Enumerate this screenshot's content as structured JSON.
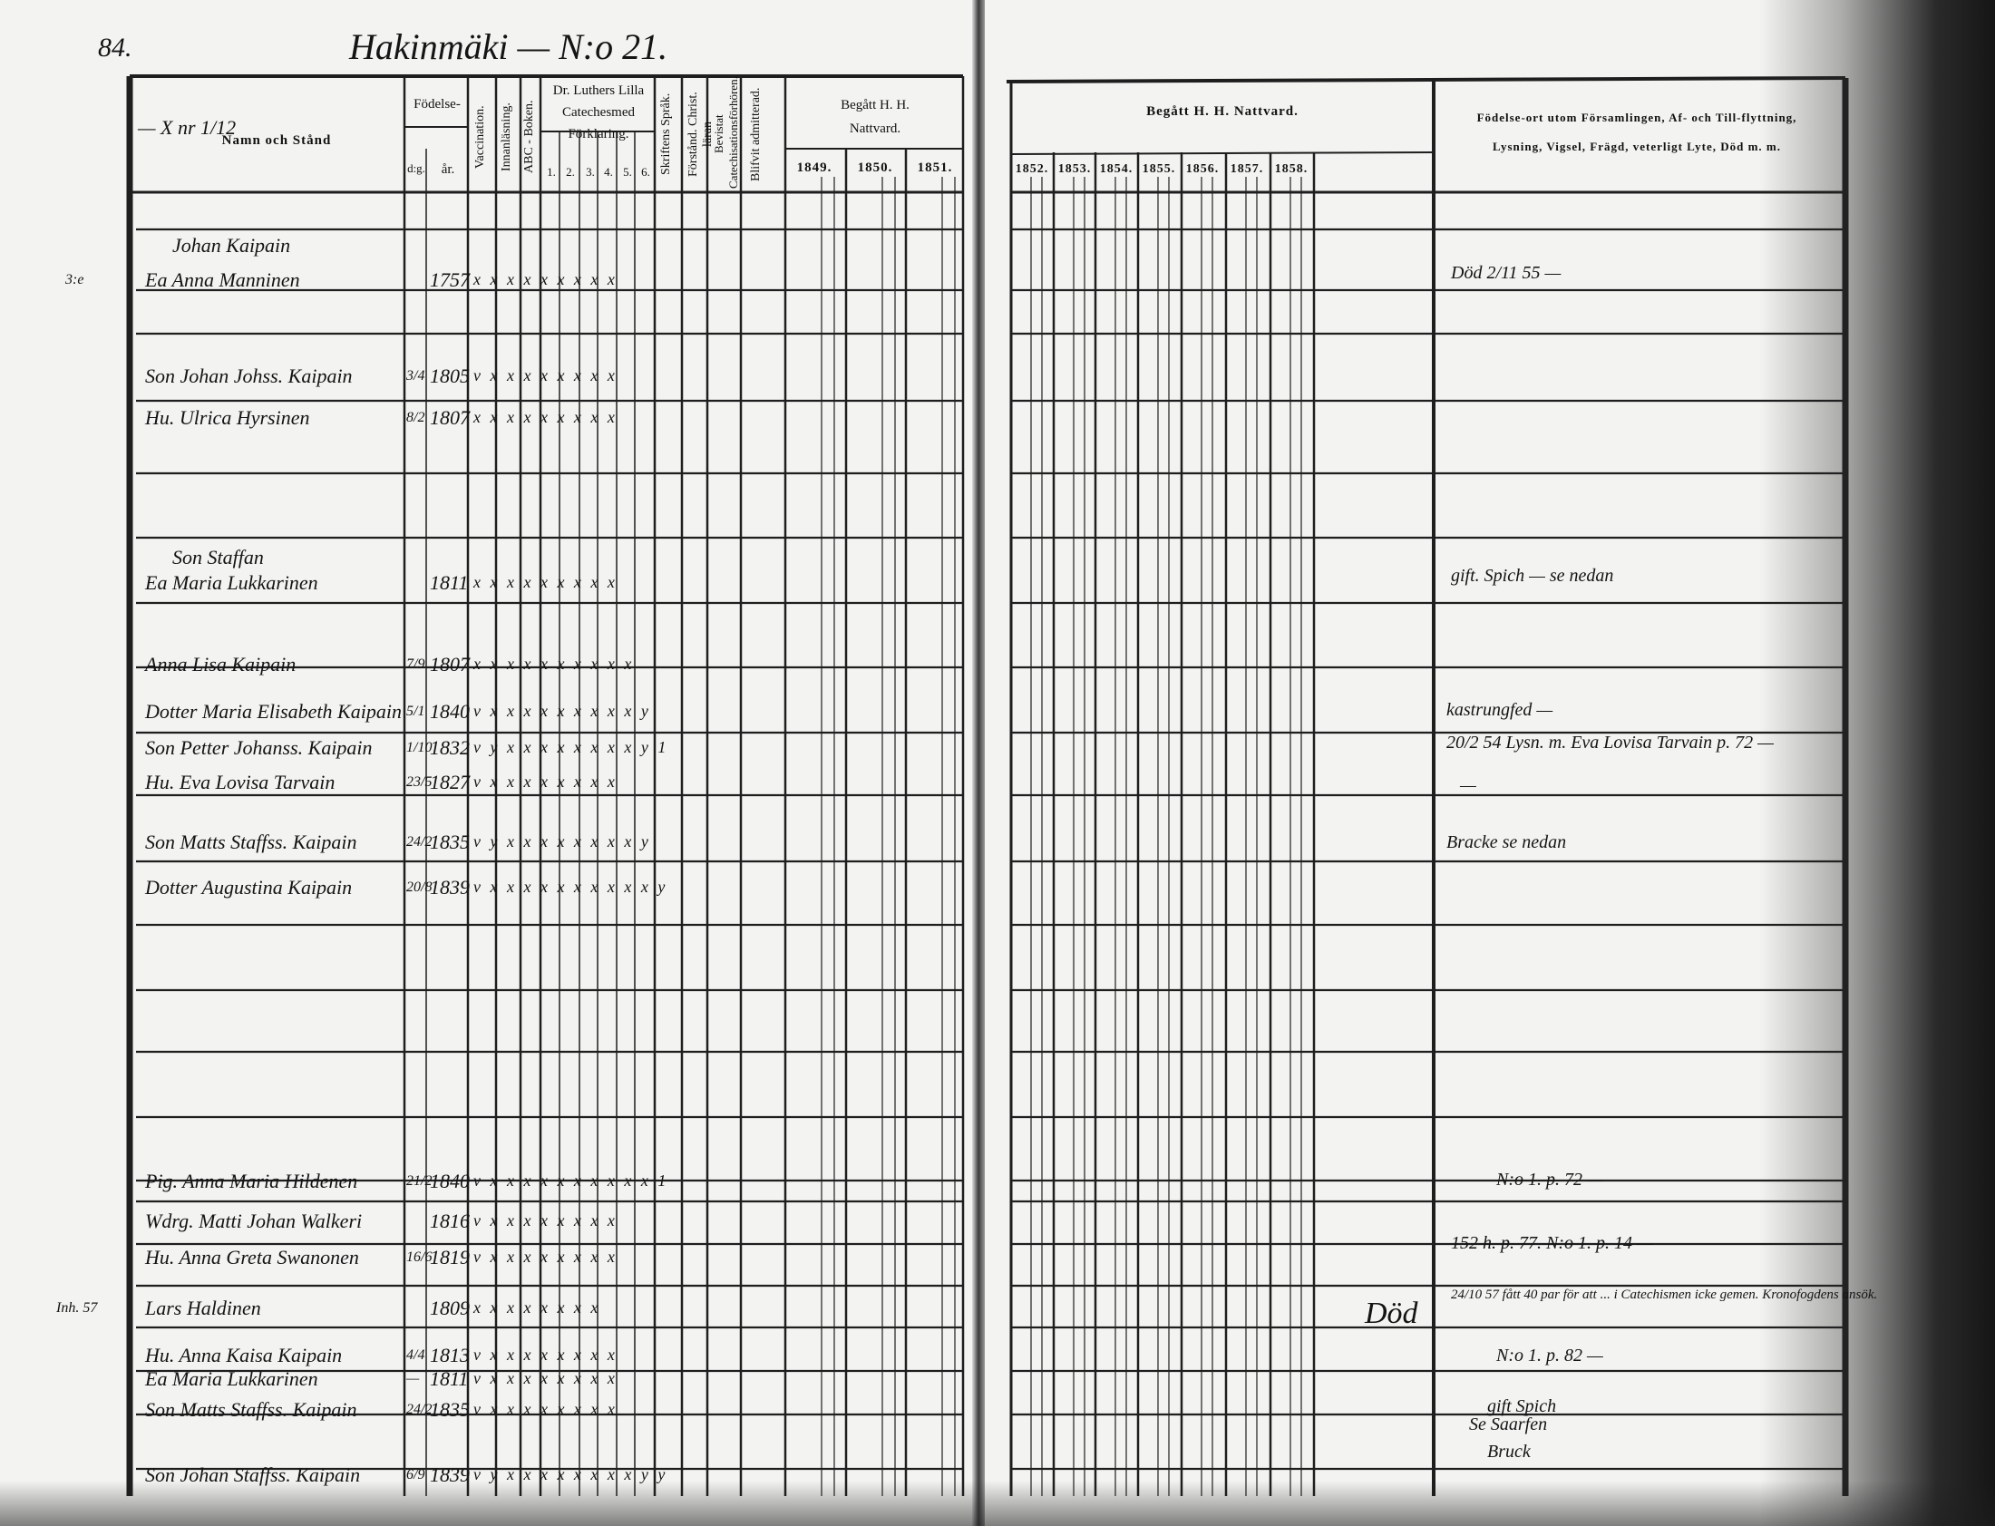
{
  "page_number": "84.",
  "title": "Hakinmäki — N:o 21.",
  "margin_mark": "— X nr 1/12",
  "headers": {
    "name": "Namn och Stånd",
    "birth": "Födelse-",
    "birth_day": "d:g.",
    "birth_year": "år.",
    "vaccination": "Vaccination.",
    "innanlasning": "Innanläsning.",
    "abc": "ABC - Boken.",
    "luther": "Dr. Luthers Lilla Catechesmed Förklaring.",
    "luther_parts": [
      "1.",
      "2.",
      "3.",
      "4.",
      "5.",
      "6."
    ],
    "skriftens": "Skriftens Språk.",
    "forst": "Förstånd. Christ. läran",
    "bevistat": "Bevistat Catechisationsförhören.",
    "blifvit": "Blifvit admitterad.",
    "begatt_left": "Begått H. H. Nattvard.",
    "years_left": [
      "1849.",
      "1850.",
      "1851."
    ],
    "begatt_right": "Begått H. H. Nattvard.",
    "years_right": [
      "1852.",
      "1853.",
      "1854.",
      "1855.",
      "1856.",
      "1857.",
      "1858."
    ],
    "notes_line1": "Födelse-ort utom Församlingen, Af- och Till-flyttning,",
    "notes_line2": "Lysning, Vigsel, Frägd, veterligt Lyte, Död m. m."
  },
  "entries": [
    {
      "prefix": "",
      "name": "Johan Kaipain",
      "day": "",
      "year": "",
      "marks": ""
    },
    {
      "prefix": "3:e",
      "name": "Ea Anna Manninen",
      "day": "",
      "year": "1757",
      "marks": "x x x x x x x x   x"
    },
    {
      "prefix": "",
      "name": "Son Johan Johss. Kaipain",
      "day": "3/4",
      "year": "1805",
      "marks": "v x x x x x x x   x"
    },
    {
      "prefix": "",
      "name": "Hu. Ulrica Hyrsinen",
      "day": "8/2",
      "year": "1807",
      "marks": "x x x x x x x x   x"
    },
    {
      "prefix": "",
      "name": "Son Staffan",
      "day": "",
      "year": "",
      "marks": ""
    },
    {
      "prefix": "",
      "name": "Ea Maria Lukkarinen",
      "day": "",
      "year": "1811",
      "marks": "x x x x x x x x   x"
    },
    {
      "prefix": "",
      "name": "Anna Lisa Kaipain",
      "day": "7/9",
      "year": "1807",
      "marks": "x x x x x x x x x  x"
    },
    {
      "prefix": "",
      "name": "Dotter Maria Elisabeth Kaipain",
      "day": "5/1",
      "year": "1840",
      "marks": "v x x x x x x x x x y"
    },
    {
      "prefix": "",
      "name": "Son Petter Johanss. Kaipain",
      "day": "1/10",
      "year": "1832",
      "marks": "v y x x x x x x x x y 1"
    },
    {
      "prefix": "",
      "name": "Hu. Eva Lovisa Tarvain",
      "day": "23/5",
      "year": "1827",
      "marks": "v x x x x x x x x"
    },
    {
      "prefix": "",
      "name": "Son Matts Staffss. Kaipain",
      "day": "24/2",
      "year": "1835",
      "marks": "v y x x x x x x x x  y"
    },
    {
      "prefix": "",
      "name": "Dotter Augustina Kaipain",
      "day": "20/8",
      "year": "1839",
      "marks": "v x x x x x x x x x x y"
    },
    {
      "prefix": "",
      "name": "Pig. Anna Maria Hildenen",
      "day": "21/2",
      "year": "1840",
      "marks": "v x x x x x x x x x x 1"
    },
    {
      "prefix": "",
      "name": "Wdrg. Matti Johan Walkeri",
      "day": "",
      "year": "1816",
      "marks": "v x x x x x x x x"
    },
    {
      "prefix": "",
      "name": "Hu. Anna Greta Swanonen",
      "day": "16/6",
      "year": "1819",
      "marks": "v x x x x x x x x"
    },
    {
      "prefix": "Inh. 57",
      "name": "Lars Haldinen",
      "day": "",
      "year": "1809",
      "marks": "x x x x x x x x"
    },
    {
      "prefix": "",
      "name": "Hu. Anna Kaisa Kaipain",
      "day": "4/4",
      "year": "1813",
      "marks": "v x x x x x x x x"
    },
    {
      "prefix": "",
      "name": "Ea Maria Lukkarinen",
      "day": "—",
      "year": "1811",
      "marks": "v x x x x x x x x"
    },
    {
      "prefix": "",
      "name": "Son Matts Staffss. Kaipain",
      "day": "24/2",
      "year": "1835",
      "marks": "v x x x x x x x x"
    },
    {
      "prefix": "",
      "name": "Son Johan Staffss. Kaipain",
      "day": "6/9",
      "year": "1839",
      "marks": "v y x x x x x x x x y y"
    }
  ],
  "notes": [
    "Död 2/11 55 —",
    "gift. Spich — se nedan",
    "kastrungfed —",
    "20/2 54 Lysn. m. Eva Lovisa Tarvain p. 72 —",
    "—",
    "Bracke  se nedan",
    "N:o 1. p. 72 —",
    "152 h. p. 77.  N:o 1. p. 14 —",
    "24/10 57 fått 40 par för att ... i Catechismen icke gemen. Kronofogdens ansök.",
    "N:o 1. p. 82 —",
    "gift Spich",
    "Se Saarfen",
    "Bruck"
  ],
  "death_mark": "Död"
}
